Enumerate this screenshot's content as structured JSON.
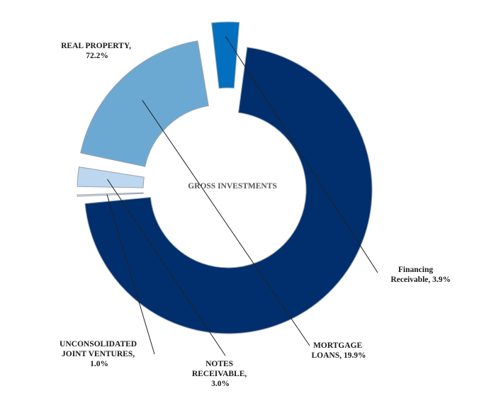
{
  "chart_data": {
    "type": "donut",
    "center_label": "GROSS INVESTMENTS",
    "slices": [
      {
        "name": "Real Property",
        "label_lines": [
          "REAL PROPERTY,",
          "72.2%"
        ],
        "value": 72.2,
        "color": "#012f6e"
      },
      {
        "name": "Financing Receivable",
        "label_lines": [
          "Financing",
          "Receivable, 3.9%"
        ],
        "value": 3.9,
        "color": "#0270be"
      },
      {
        "name": "Mortgage Loans",
        "label_lines": [
          "MORTGAGE",
          "LOANS, 19.9%"
        ],
        "value": 19.9,
        "color": "#6ba9d3"
      },
      {
        "name": "Notes Receivable",
        "label_lines": [
          "NOTES",
          "RECEIVABLE,",
          "3.0%"
        ],
        "value": 3.0,
        "color": "#bcd7ef"
      },
      {
        "name": "Unconsolidated Joint Ventures",
        "label_lines": [
          "UNCONSOLIDATED",
          "JOINT VENTURES,",
          "1.0%"
        ],
        "value": 1.0,
        "color": "#dfe8f5"
      }
    ]
  }
}
